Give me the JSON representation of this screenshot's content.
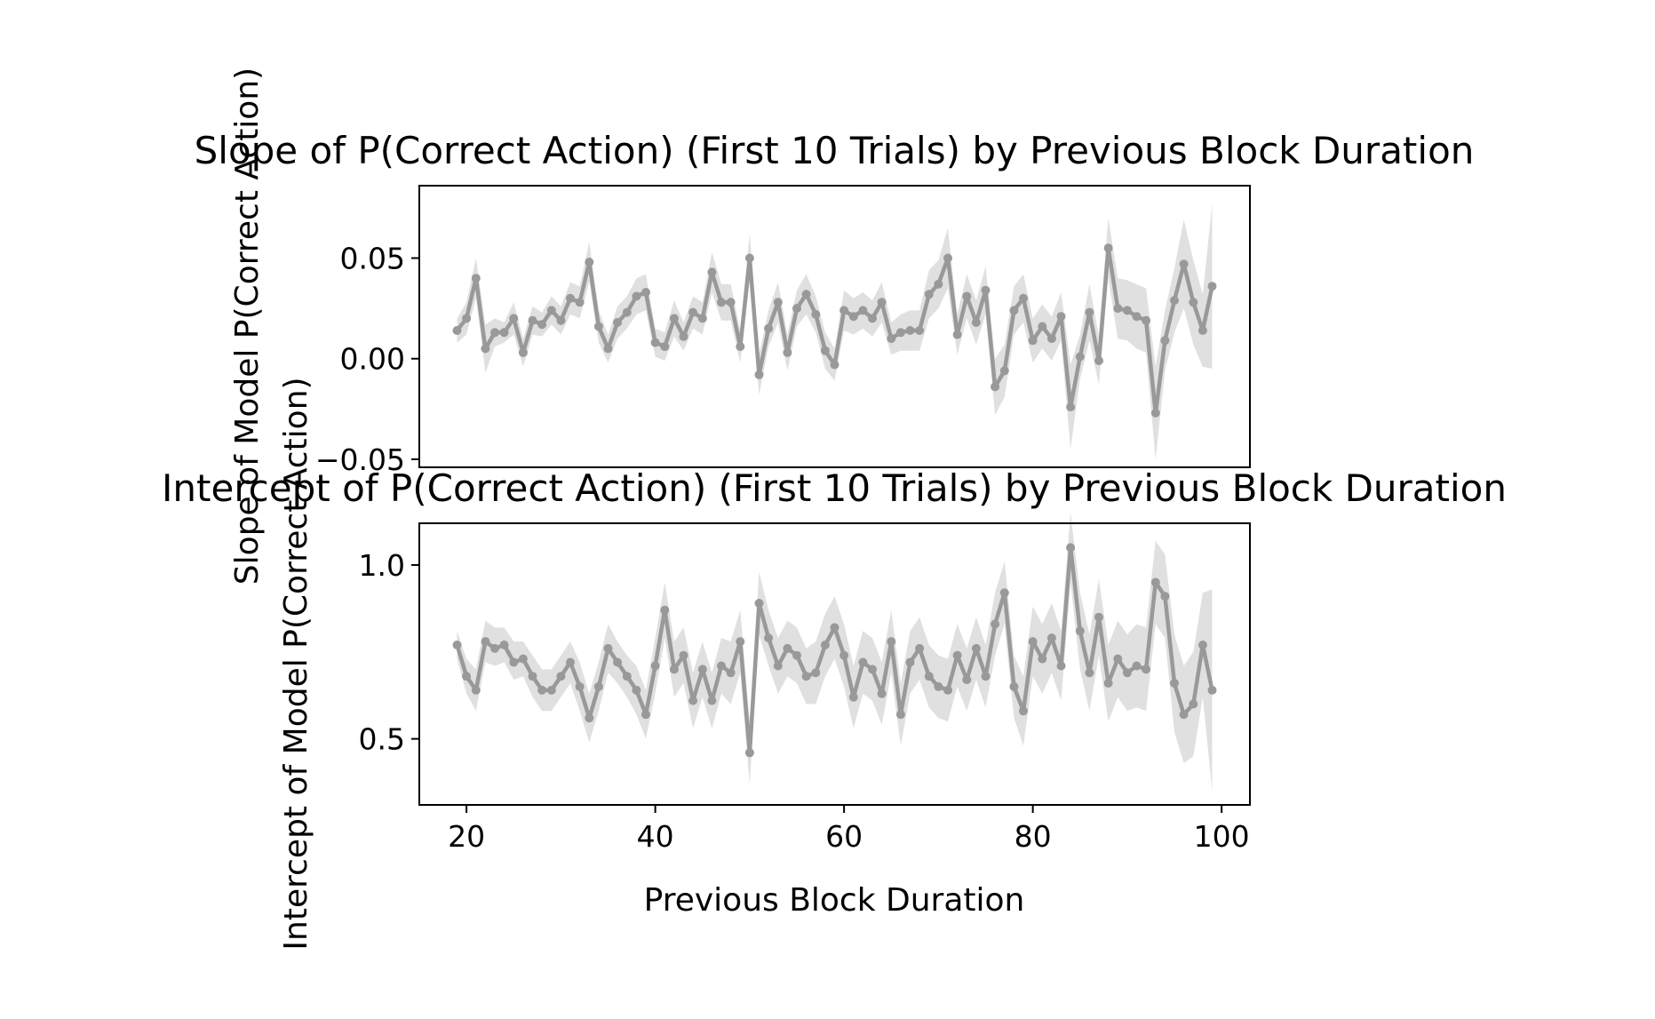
{
  "chart_data": [
    {
      "type": "line",
      "title": "Slope of P(Correct Action) (First 10 Trials) by Previous Block Duration",
      "xlabel": "",
      "ylabel": "Slope of Model P(Correct Action)",
      "xlim": [
        15,
        103
      ],
      "ylim": [
        -0.054,
        0.086
      ],
      "xticks": [],
      "yticks": [
        {
          "value": -0.05,
          "label": "−0.05"
        },
        {
          "value": 0.0,
          "label": "0.00"
        },
        {
          "value": 0.05,
          "label": "0.05"
        }
      ],
      "color": "#999999",
      "band_color": "#e0e0e0",
      "series": [
        {
          "x": [
            19,
            20,
            21,
            22,
            23,
            24,
            25,
            26,
            27,
            28,
            29,
            30,
            31,
            32,
            33,
            34,
            35,
            36,
            37,
            38,
            39,
            40,
            41,
            42,
            43,
            44,
            45,
            46,
            47,
            48,
            49,
            50,
            51,
            52,
            53,
            54,
            55,
            56,
            57,
            58,
            59,
            60,
            61,
            62,
            63,
            64,
            65,
            66,
            67,
            68,
            69,
            70,
            71,
            72,
            73,
            74,
            75,
            76,
            77,
            78,
            79,
            80,
            81,
            82,
            83,
            84,
            85,
            86,
            87,
            88,
            89,
            90,
            91,
            92,
            93,
            94,
            95,
            96,
            97,
            98,
            99
          ],
          "y": [
            0.014,
            0.02,
            0.04,
            0.005,
            0.013,
            0.013,
            0.02,
            0.003,
            0.019,
            0.017,
            0.024,
            0.019,
            0.03,
            0.028,
            0.048,
            0.016,
            0.005,
            0.018,
            0.023,
            0.031,
            0.033,
            0.008,
            0.006,
            0.02,
            0.011,
            0.023,
            0.02,
            0.043,
            0.028,
            0.028,
            0.006,
            0.05,
            -0.008,
            0.015,
            0.028,
            0.003,
            0.025,
            0.032,
            0.022,
            0.004,
            -0.003,
            0.024,
            0.021,
            0.024,
            0.02,
            0.028,
            0.01,
            0.013,
            0.014,
            0.014,
            0.032,
            0.037,
            0.05,
            0.012,
            0.031,
            0.018,
            0.034,
            -0.014,
            -0.006,
            0.024,
            0.03,
            0.009,
            0.016,
            0.01,
            0.021,
            -0.024,
            0.001,
            0.023,
            -0.001,
            0.055,
            0.025,
            0.024,
            0.021,
            0.019,
            -0.027,
            0.009,
            0.029,
            0.047,
            0.028,
            0.014,
            0.036
          ],
          "lower": [
            0.008,
            0.012,
            0.03,
            -0.007,
            0.006,
            0.008,
            0.012,
            -0.004,
            0.012,
            0.011,
            0.017,
            0.012,
            0.022,
            0.02,
            0.038,
            0.008,
            -0.002,
            0.01,
            0.015,
            0.022,
            0.024,
            0.001,
            -0.001,
            0.011,
            0.004,
            0.015,
            0.012,
            0.033,
            0.019,
            0.019,
            -0.002,
            0.038,
            -0.018,
            0.006,
            0.018,
            -0.006,
            0.016,
            0.022,
            0.013,
            -0.005,
            -0.011,
            0.014,
            0.012,
            0.015,
            0.011,
            0.018,
            0.002,
            0.004,
            0.004,
            0.004,
            0.02,
            0.025,
            0.035,
            0.002,
            0.02,
            0.007,
            0.022,
            -0.028,
            -0.019,
            0.012,
            0.018,
            -0.002,
            0.005,
            -0.001,
            0.009,
            -0.045,
            -0.01,
            0.009,
            -0.013,
            0.04,
            0.01,
            0.009,
            0.005,
            0.003,
            -0.05,
            -0.006,
            0.013,
            0.025,
            0.007,
            -0.004,
            -0.005
          ],
          "upper": [
            0.02,
            0.028,
            0.05,
            0.017,
            0.02,
            0.018,
            0.028,
            0.01,
            0.026,
            0.023,
            0.031,
            0.026,
            0.038,
            0.036,
            0.058,
            0.024,
            0.012,
            0.026,
            0.031,
            0.04,
            0.042,
            0.015,
            0.013,
            0.029,
            0.018,
            0.031,
            0.028,
            0.053,
            0.037,
            0.037,
            0.014,
            0.062,
            0.002,
            0.024,
            0.038,
            0.012,
            0.034,
            0.042,
            0.031,
            0.013,
            0.005,
            0.034,
            0.03,
            0.033,
            0.029,
            0.038,
            0.018,
            0.022,
            0.024,
            0.024,
            0.044,
            0.049,
            0.065,
            0.022,
            0.042,
            0.029,
            0.046,
            0.0,
            0.007,
            0.036,
            0.042,
            0.02,
            0.027,
            0.021,
            0.033,
            -0.003,
            0.012,
            0.037,
            0.011,
            0.07,
            0.04,
            0.039,
            0.037,
            0.035,
            -0.004,
            0.024,
            0.045,
            0.069,
            0.049,
            0.032,
            0.077
          ]
        }
      ]
    },
    {
      "type": "line",
      "title": "Intercept of P(Correct Action) (First 10 Trials) by Previous Block Duration",
      "xlabel": "Previous Block Duration",
      "ylabel": "Intercept of Model P(Correct Action)",
      "xlim": [
        15,
        103
      ],
      "ylim": [
        0.31,
        1.12
      ],
      "xticks": [
        {
          "value": 20,
          "label": "20"
        },
        {
          "value": 40,
          "label": "40"
        },
        {
          "value": 60,
          "label": "60"
        },
        {
          "value": 80,
          "label": "80"
        },
        {
          "value": 100,
          "label": "100"
        }
      ],
      "yticks": [
        {
          "value": 0.5,
          "label": "0.5"
        },
        {
          "value": 1.0,
          "label": "1.0"
        }
      ],
      "color": "#999999",
      "band_color": "#e0e0e0",
      "series": [
        {
          "x": [
            19,
            20,
            21,
            22,
            23,
            24,
            25,
            26,
            27,
            28,
            29,
            30,
            31,
            32,
            33,
            34,
            35,
            36,
            37,
            38,
            39,
            40,
            41,
            42,
            43,
            44,
            45,
            46,
            47,
            48,
            49,
            50,
            51,
            52,
            53,
            54,
            55,
            56,
            57,
            58,
            59,
            60,
            61,
            62,
            63,
            64,
            65,
            66,
            67,
            68,
            69,
            70,
            71,
            72,
            73,
            74,
            75,
            76,
            77,
            78,
            79,
            80,
            81,
            82,
            83,
            84,
            85,
            86,
            87,
            88,
            89,
            90,
            91,
            92,
            93,
            94,
            95,
            96,
            97,
            98,
            99
          ],
          "y": [
            0.77,
            0.68,
            0.64,
            0.78,
            0.76,
            0.77,
            0.72,
            0.73,
            0.68,
            0.64,
            0.64,
            0.68,
            0.72,
            0.65,
            0.56,
            0.65,
            0.76,
            0.72,
            0.68,
            0.64,
            0.57,
            0.71,
            0.87,
            0.7,
            0.74,
            0.61,
            0.7,
            0.61,
            0.71,
            0.69,
            0.78,
            0.46,
            0.89,
            0.79,
            0.71,
            0.76,
            0.74,
            0.68,
            0.69,
            0.77,
            0.82,
            0.74,
            0.62,
            0.72,
            0.7,
            0.63,
            0.78,
            0.57,
            0.72,
            0.76,
            0.68,
            0.65,
            0.64,
            0.74,
            0.67,
            0.76,
            0.68,
            0.83,
            0.92,
            0.65,
            0.58,
            0.78,
            0.73,
            0.79,
            0.71,
            1.05,
            0.81,
            0.69,
            0.85,
            0.66,
            0.73,
            0.69,
            0.71,
            0.7,
            0.95,
            0.91,
            0.66,
            0.57,
            0.6,
            0.77,
            0.64
          ],
          "lower": [
            0.73,
            0.63,
            0.58,
            0.72,
            0.71,
            0.72,
            0.67,
            0.68,
            0.62,
            0.58,
            0.58,
            0.62,
            0.66,
            0.58,
            0.49,
            0.58,
            0.69,
            0.66,
            0.62,
            0.57,
            0.5,
            0.63,
            0.79,
            0.62,
            0.66,
            0.53,
            0.62,
            0.53,
            0.63,
            0.6,
            0.69,
            0.37,
            0.8,
            0.71,
            0.63,
            0.68,
            0.66,
            0.6,
            0.6,
            0.68,
            0.73,
            0.65,
            0.53,
            0.63,
            0.61,
            0.54,
            0.69,
            0.48,
            0.63,
            0.67,
            0.59,
            0.56,
            0.55,
            0.65,
            0.58,
            0.67,
            0.59,
            0.74,
            0.83,
            0.56,
            0.48,
            0.68,
            0.63,
            0.69,
            0.61,
            0.95,
            0.7,
            0.58,
            0.74,
            0.55,
            0.62,
            0.58,
            0.59,
            0.58,
            0.83,
            0.79,
            0.52,
            0.43,
            0.45,
            0.62,
            0.35
          ],
          "upper": [
            0.81,
            0.73,
            0.7,
            0.84,
            0.82,
            0.82,
            0.78,
            0.78,
            0.74,
            0.7,
            0.7,
            0.74,
            0.78,
            0.72,
            0.63,
            0.72,
            0.83,
            0.78,
            0.74,
            0.71,
            0.64,
            0.79,
            0.95,
            0.78,
            0.82,
            0.69,
            0.78,
            0.69,
            0.79,
            0.78,
            0.87,
            0.55,
            0.98,
            0.87,
            0.79,
            0.84,
            0.82,
            0.76,
            0.78,
            0.86,
            0.91,
            0.83,
            0.71,
            0.81,
            0.79,
            0.72,
            0.87,
            0.66,
            0.81,
            0.85,
            0.77,
            0.74,
            0.73,
            0.83,
            0.76,
            0.85,
            0.77,
            0.92,
            1.01,
            0.74,
            0.68,
            0.88,
            0.83,
            0.89,
            0.81,
            1.15,
            0.92,
            0.8,
            0.96,
            0.77,
            0.84,
            0.8,
            0.83,
            0.82,
            1.07,
            1.03,
            0.8,
            0.71,
            0.75,
            0.92,
            0.93
          ]
        }
      ]
    }
  ]
}
